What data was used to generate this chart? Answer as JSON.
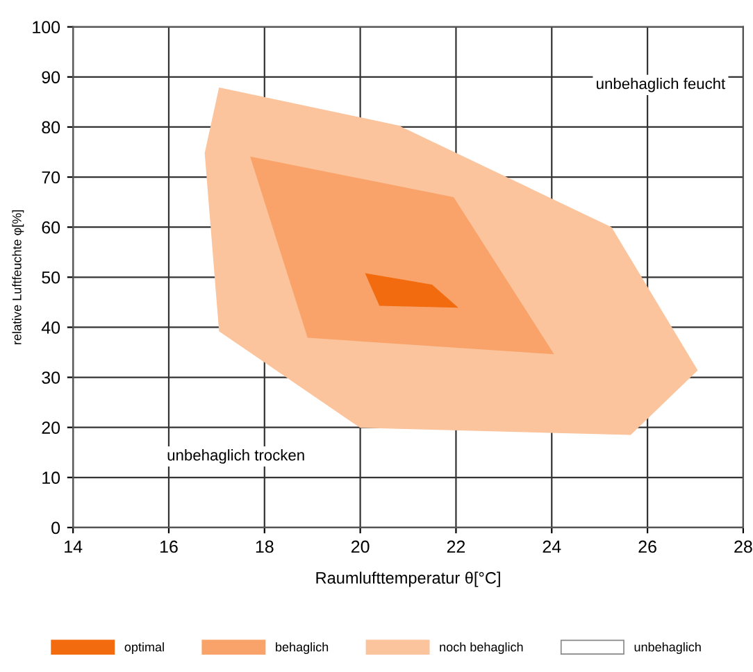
{
  "chart_data": {
    "type": "area",
    "xlabel": "Raumlufttemperatur θ[°C]",
    "ylabel": "relative Luftfeuchte φ[%]",
    "xlim": [
      14,
      28
    ],
    "xticks": [
      14,
      16,
      18,
      20,
      22,
      24,
      26,
      28
    ],
    "ylim": [
      0,
      100
    ],
    "yticks": [
      0,
      10,
      20,
      30,
      40,
      50,
      60,
      70,
      80,
      90,
      100
    ],
    "grid": true,
    "legend": "bottom",
    "series": [
      {
        "name": "optimal",
        "color": "#f26b0f",
        "x": [
          20.1,
          21.5,
          22.05,
          20.4
        ],
        "values": [
          50.8,
          48.5,
          43.9,
          44.3
        ]
      },
      {
        "name": "behaglich",
        "color": "#f9a36a",
        "x": [
          17.7,
          21.95,
          24.05,
          18.9
        ],
        "values": [
          74.1,
          66.0,
          34.6,
          37.9
        ]
      },
      {
        "name": "noch behaglich",
        "color": "#fbc49c",
        "x": [
          17.05,
          20.8,
          25.25,
          27.05,
          25.65,
          20.0,
          17.05,
          16.75
        ],
        "values": [
          87.9,
          80.3,
          60.0,
          31.4,
          18.5,
          19.9,
          39.2,
          74.8
        ]
      },
      {
        "name": "unbehaglich",
        "color": "#ffffff"
      }
    ],
    "annotations": [
      "unbehaglich feucht",
      "unbehaglich trocken"
    ]
  }
}
